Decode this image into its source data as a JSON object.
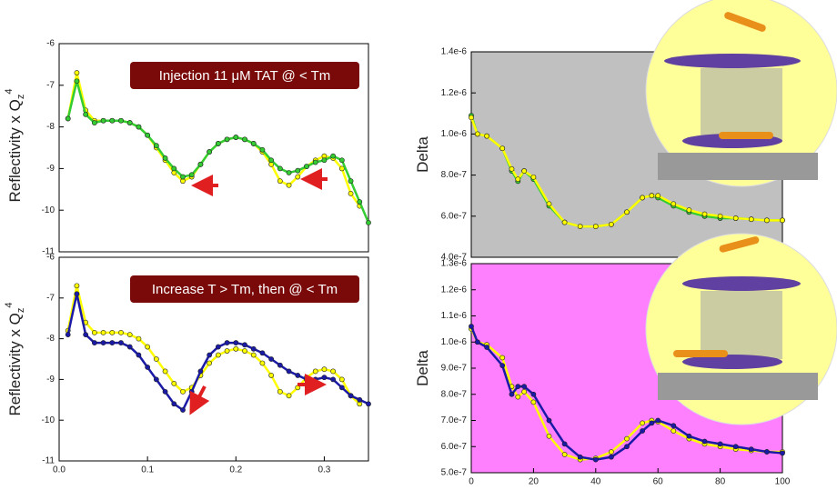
{
  "chart_data": [
    {
      "type": "line",
      "xlim": [
        0,
        0.35
      ],
      "ylim": [
        -11,
        -6
      ],
      "yticks": [
        -11,
        -10,
        -9,
        -8,
        -7,
        -6
      ],
      "ylabel": "Reflectivity x Q",
      "ylabel_sub": "z",
      "ylabel_sup": "4",
      "annotation": "Injection 11 μM TAT @ < Tm",
      "background": "#ffffff",
      "x": [
        0.01,
        0.02,
        0.03,
        0.04,
        0.05,
        0.06,
        0.07,
        0.08,
        0.09,
        0.1,
        0.11,
        0.12,
        0.13,
        0.14,
        0.15,
        0.16,
        0.17,
        0.18,
        0.19,
        0.2,
        0.21,
        0.22,
        0.23,
        0.24,
        0.25,
        0.26,
        0.27,
        0.28,
        0.29,
        0.3,
        0.31,
        0.32,
        0.33,
        0.34,
        0.35
      ],
      "series": [
        {
          "color": "#ffff00",
          "values": [
            -7.8,
            -6.7,
            -7.6,
            -7.85,
            -7.85,
            -7.85,
            -7.85,
            -7.9,
            -8.0,
            -8.2,
            -8.5,
            -8.8,
            -9.1,
            -9.3,
            -9.2,
            -8.9,
            -8.6,
            -8.4,
            -8.3,
            -8.25,
            -8.3,
            -8.4,
            -8.6,
            -8.9,
            -9.3,
            -9.4,
            -9.2,
            -8.95,
            -8.8,
            -8.7,
            -8.75,
            -9.0,
            -9.6,
            -9.9,
            null
          ]
        },
        {
          "color": "#33cc33",
          "values": [
            -7.8,
            -6.9,
            -7.7,
            -7.9,
            -7.85,
            -7.85,
            -7.85,
            -7.9,
            -8.0,
            -8.2,
            -8.45,
            -8.75,
            -9.0,
            -9.2,
            -9.15,
            -8.9,
            -8.6,
            -8.4,
            -8.3,
            -8.25,
            -8.3,
            -8.4,
            -8.55,
            -8.8,
            -9.0,
            -9.1,
            -9.05,
            -8.95,
            -8.85,
            -8.8,
            -8.7,
            -8.8,
            -9.3,
            -9.8,
            -10.3
          ]
        }
      ]
    },
    {
      "type": "line",
      "xlim": [
        0,
        0.35
      ],
      "ylim": [
        -11,
        -6
      ],
      "yticks": [
        -11,
        -10,
        -9,
        -8,
        -7,
        -6
      ],
      "xticks": [
        {
          "value": 0,
          "label": "0.0"
        },
        0.1,
        0.2,
        0.3
      ],
      "ylabel": "Reflectivity x Q",
      "ylabel_sub": "z",
      "ylabel_sup": "4",
      "annotation": "Increase T > Tm, then @ < Tm",
      "background": "#ffffff",
      "x": [
        0.01,
        0.02,
        0.03,
        0.04,
        0.05,
        0.06,
        0.07,
        0.08,
        0.09,
        0.1,
        0.11,
        0.12,
        0.13,
        0.14,
        0.15,
        0.16,
        0.17,
        0.18,
        0.19,
        0.2,
        0.21,
        0.22,
        0.23,
        0.24,
        0.25,
        0.26,
        0.27,
        0.28,
        0.29,
        0.3,
        0.31,
        0.32,
        0.33,
        0.34,
        0.35
      ],
      "series": [
        {
          "color": "#ffff00",
          "values": [
            -7.8,
            -6.7,
            -7.6,
            -7.85,
            -7.85,
            -7.85,
            -7.85,
            -7.9,
            -8.0,
            -8.2,
            -8.5,
            -8.8,
            -9.1,
            -9.3,
            -9.2,
            -8.9,
            -8.6,
            -8.4,
            -8.3,
            -8.25,
            -8.3,
            -8.4,
            -8.6,
            -8.9,
            -9.3,
            -9.4,
            -9.2,
            -8.95,
            -8.8,
            -8.75,
            -8.8,
            -9.0,
            -9.4,
            -9.6,
            null
          ]
        },
        {
          "color": "#1a1aa6",
          "values": [
            -7.9,
            -6.9,
            -7.9,
            -8.1,
            -8.1,
            -8.1,
            -8.1,
            -8.2,
            -8.4,
            -8.7,
            -9.0,
            -9.3,
            -9.6,
            -9.75,
            -9.3,
            -8.8,
            -8.4,
            -8.2,
            -8.1,
            -8.1,
            -8.15,
            -8.25,
            -8.35,
            -8.5,
            -8.65,
            -8.8,
            -8.9,
            -9.0,
            -9.0,
            -8.95,
            -9.0,
            -9.2,
            -9.4,
            -9.5,
            -9.6
          ]
        }
      ]
    },
    {
      "type": "line",
      "xlim": [
        0,
        100
      ],
      "ylim": [
        4e-07,
        1.4e-06
      ],
      "yticks": [
        {
          "value": 4e-07,
          "label": "4.0e-7"
        },
        {
          "value": 6e-07,
          "label": "6.0e-7"
        },
        {
          "value": 8e-07,
          "label": "8.0e-7"
        },
        {
          "value": 1e-06,
          "label": "1.0e-6"
        },
        {
          "value": 1.2e-06,
          "label": "1.2e-6"
        },
        {
          "value": 1.4e-06,
          "label": "1.4e-6"
        }
      ],
      "ylabel": "Delta",
      "background": "#c0c0c0",
      "x": [
        0,
        2,
        5,
        10,
        13,
        15,
        17,
        20,
        25,
        30,
        35,
        40,
        45,
        50,
        55,
        58,
        60,
        65,
        70,
        75,
        80,
        85,
        90,
        95,
        100
      ],
      "series": [
        {
          "color": "#33cc33",
          "values": [
            1.09e-06,
            1e-06,
            9.9e-07,
            9.3e-07,
            8.2e-07,
            7.7e-07,
            8.2e-07,
            7.8e-07,
            6.5e-07,
            5.7e-07,
            5.5e-07,
            5.5e-07,
            5.6e-07,
            6.2e-07,
            6.9e-07,
            7e-07,
            6.9e-07,
            6.5e-07,
            6.2e-07,
            6e-07,
            5.9e-07,
            5.9e-07,
            5.85e-07,
            5.8e-07,
            5.8e-07
          ]
        },
        {
          "color": "#ffff00",
          "values": [
            1.08e-06,
            1e-06,
            9.9e-07,
            9.3e-07,
            8.3e-07,
            7.8e-07,
            8.2e-07,
            7.9e-07,
            6.6e-07,
            5.7e-07,
            5.5e-07,
            5.5e-07,
            5.6e-07,
            6.2e-07,
            6.9e-07,
            7e-07,
            7e-07,
            6.6e-07,
            6.3e-07,
            6.1e-07,
            6e-07,
            5.9e-07,
            5.85e-07,
            5.8e-07,
            5.8e-07
          ]
        }
      ]
    },
    {
      "type": "line",
      "xlim": [
        0,
        100
      ],
      "ylim": [
        5e-07,
        1.3e-06
      ],
      "xticks": [
        0,
        20,
        40,
        60,
        80,
        100
      ],
      "yticks": [
        {
          "value": 5e-07,
          "label": "5.0e-7"
        },
        {
          "value": 6e-07,
          "label": "6.0e-7"
        },
        {
          "value": 7e-07,
          "label": "7.0e-7"
        },
        {
          "value": 8e-07,
          "label": "8.0e-7"
        },
        {
          "value": 9e-07,
          "label": "9.0e-7"
        },
        {
          "value": 1e-06,
          "label": "1.0e-6"
        },
        {
          "value": 1.1e-06,
          "label": "1.1e-6"
        },
        {
          "value": 1.2e-06,
          "label": "1.2e-6"
        },
        {
          "value": 1.3e-06,
          "label": "1.3e-6"
        }
      ],
      "ylabel": "Delta",
      "background": "#ff80ff",
      "x": [
        0,
        2,
        5,
        10,
        13,
        15,
        17,
        20,
        25,
        30,
        35,
        40,
        45,
        50,
        55,
        58,
        60,
        65,
        70,
        75,
        80,
        85,
        90,
        95,
        100
      ],
      "series": [
        {
          "color": "#ffff00",
          "values": [
            1.05e-06,
            1e-06,
            9.9e-07,
            9.4e-07,
            8.3e-07,
            7.9e-07,
            8.1e-07,
            7.7e-07,
            6.4e-07,
            5.7e-07,
            5.5e-07,
            5.55e-07,
            5.8e-07,
            6.3e-07,
            6.9e-07,
            7e-07,
            6.95e-07,
            6.6e-07,
            6.3e-07,
            6.1e-07,
            6e-07,
            5.9e-07,
            5.85e-07,
            5.8e-07,
            5.8e-07
          ]
        },
        {
          "color": "#1a1aa6",
          "values": [
            1.06e-06,
            1e-06,
            9.8e-07,
            9.1e-07,
            8e-07,
            8.3e-07,
            8.3e-07,
            8e-07,
            7e-07,
            6.1e-07,
            5.6e-07,
            5.5e-07,
            5.6e-07,
            6e-07,
            6.6e-07,
            6.9e-07,
            7e-07,
            6.8e-07,
            6.4e-07,
            6.2e-07,
            6.1e-07,
            6e-07,
            5.9e-07,
            5.8e-07,
            5.75e-07
          ]
        }
      ]
    }
  ]
}
